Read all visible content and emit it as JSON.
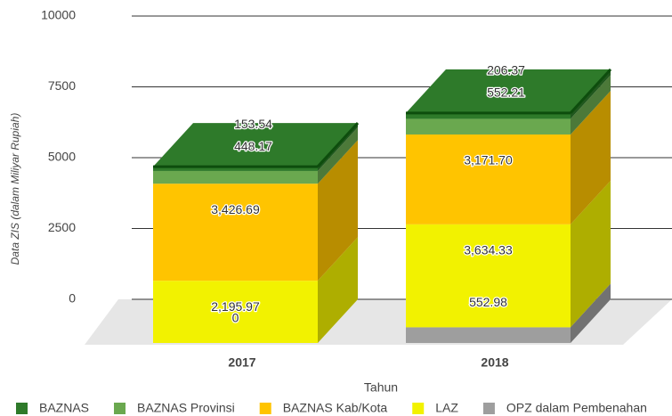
{
  "chart_data": {
    "type": "bar3d_stacked",
    "categories": [
      "2017",
      "2018"
    ],
    "x_label": "Tahun",
    "y_label": "Data ZIS (dalam Miliyar Rupiah)",
    "ylim": [
      0,
      10000
    ],
    "yticks": [
      0,
      2500,
      5000,
      7500,
      10000
    ],
    "grid": true,
    "legend": "bottom",
    "series": [
      {
        "name": "OPZ dalam Pembenahan",
        "color": "#9e9e9e",
        "values": [
          0,
          552.98
        ]
      },
      {
        "name": "LAZ",
        "color": "#f2f200",
        "values": [
          2195.97,
          3634.33
        ],
        "value_labels": [
          "2,195.97",
          "3,634.33"
        ]
      },
      {
        "name": "BAZNAS Kab/Kota",
        "color": "#ffc400",
        "values": [
          3426.69,
          3171.7
        ],
        "value_labels": [
          "3,426.69",
          "3,171.70"
        ]
      },
      {
        "name": "BAZNAS Provinsi",
        "color": "#6aa84f",
        "values": [
          448.17,
          552.21
        ]
      },
      {
        "name": "BAZNAS",
        "color": "#2e7a2a",
        "values": [
          153.54,
          206.37
        ]
      }
    ]
  }
}
